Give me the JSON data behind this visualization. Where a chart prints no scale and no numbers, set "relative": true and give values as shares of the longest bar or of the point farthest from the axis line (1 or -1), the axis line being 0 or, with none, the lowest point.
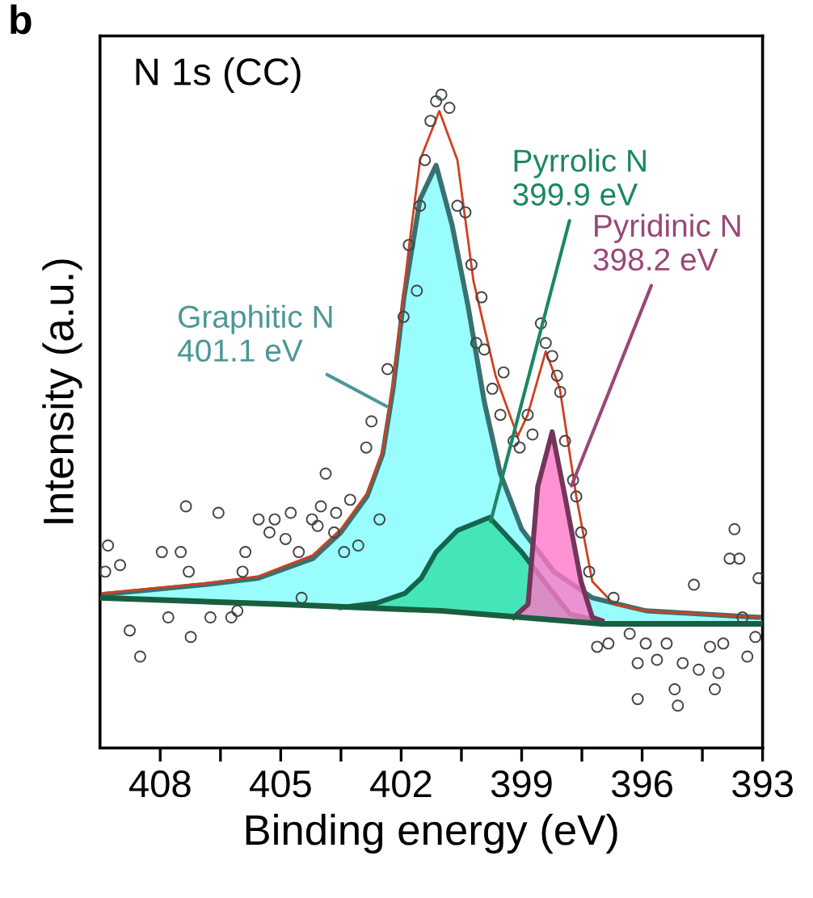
{
  "chart_data": {
    "type": "line",
    "relative": true,
    "title": "N 1s (CC)",
    "xlabel": "Binding energy (eV)",
    "ylabel": "Intensity (a.u.)",
    "xlim": [
      409.5,
      393
    ],
    "xticks": [
      408,
      {
        "value": 406.5,
        "label": null
      },
      405,
      {
        "value": 403.5,
        "label": null
      },
      402,
      {
        "value": 400.5,
        "label": null
      },
      399,
      {
        "value": 397.5,
        "label": null
      },
      396,
      {
        "value": 394.5,
        "label": null
      },
      393
    ],
    "grid": false,
    "annotations": [
      "b",
      {
        "text": "Graphitic N\n401.1 eV",
        "x": 402.27,
        "y": 0.52
      },
      {
        "text": "Pyrrolic N\n399.9 eV",
        "x": 399.8,
        "y": 0.34
      },
      {
        "text": "Pyridinic N\n398.2 eV",
        "x": 397.8,
        "y": 0.395
      }
    ],
    "series": [
      {
        "type": "area",
        "color": "#7ffcfc",
        "x": [
          409.45,
          406.9,
          405.55,
          404.2,
          403.5,
          402.85,
          402.46,
          402.2,
          401.93,
          401.53,
          401.13,
          400.73,
          400.33,
          399.93,
          399.53,
          399.0,
          398.2,
          397.24,
          395.9,
          393.1
        ],
        "values": [
          0.235,
          0.25,
          0.26,
          0.29,
          0.33,
          0.385,
          0.45,
          0.55,
          0.69,
          0.84,
          0.892,
          0.8,
          0.675,
          0.53,
          0.42,
          0.335,
          0.27,
          0.23,
          0.21,
          0.2
        ]
      },
      {
        "type": "area",
        "color": "#2ee0a8",
        "x": [
          403.5,
          402.6,
          401.9,
          401.5,
          401.13,
          400.6,
          399.8,
          399.0,
          398.44,
          397.8,
          397.3
        ],
        "values": [
          0.215,
          0.222,
          0.237,
          0.26,
          0.3,
          0.333,
          0.353,
          0.3,
          0.255,
          0.205,
          0.198
        ]
      },
      {
        "type": "area",
        "color": "#ff77c8",
        "x": [
          399.2,
          398.84,
          398.6,
          398.24,
          397.92,
          397.52,
          397.24,
          397.0
        ],
        "values": [
          0.2,
          0.22,
          0.4,
          0.484,
          0.385,
          0.255,
          0.2,
          0.195
        ]
      },
      {
        "color": "#1a5e40",
        "x": [
          409.5,
          405,
          401,
          397,
          393
        ],
        "values": [
          0.23,
          0.22,
          0.21,
          0.19,
          0.19
        ]
      },
      {
        "color": "#d04020",
        "x": [
          409.45,
          406.9,
          405.55,
          404.2,
          403.5,
          402.85,
          402.46,
          402.2,
          401.8,
          401.53,
          401.05,
          400.6,
          400.2,
          399.65,
          399.1,
          398.85,
          398.4,
          398.05,
          397.64,
          397.24,
          396.7,
          395.9,
          393.1
        ],
        "values": [
          0.237,
          0.252,
          0.263,
          0.295,
          0.335,
          0.39,
          0.455,
          0.56,
          0.77,
          0.9,
          0.975,
          0.9,
          0.715,
          0.57,
          0.477,
          0.51,
          0.607,
          0.55,
          0.385,
          0.255,
          0.22,
          0.21,
          0.2
        ]
      },
      {
        "type": "scatter",
        "color": "#444444",
        "marker": "circle",
        "x": [
          409.3,
          409.0,
          409.37,
          408.76,
          408.5,
          407.96,
          407.49,
          407.8,
          407.36,
          407.24,
          407.29,
          406.55,
          406.75,
          405.95,
          405.88,
          405.55,
          405.28,
          405.15,
          404.75,
          404.88,
          404.55,
          406.23,
          406.08,
          404.48,
          404.22,
          404.08,
          404.0,
          403.88,
          403.67,
          403.62,
          403.42,
          403.27,
          403.07,
          402.87,
          402.74,
          402.54,
          402.34,
          401.94,
          401.81,
          401.61,
          401.53,
          401.41,
          401.27,
          401.13,
          401.0,
          400.8,
          400.6,
          400.4,
          400.25,
          400.0,
          400.13,
          399.93,
          399.45,
          399.73,
          399.53,
          399.2,
          399.05,
          398.85,
          398.73,
          398.52,
          398.4,
          398.24,
          398.12,
          398.04,
          397.92,
          397.72,
          397.64,
          397.52,
          397.32,
          396.71,
          397.12,
          396.84,
          396.31,
          396.11,
          396.11,
          395.91,
          395.63,
          395.39,
          395.19,
          395.11,
          394.99,
          394.71,
          394.59,
          394.31,
          394.19,
          394.1,
          393.98,
          393.82,
          393.7,
          393.58,
          393.5,
          393.38,
          393.18,
          393.1
        ],
        "values": [
          0.31,
          0.28,
          0.27,
          0.18,
          0.14,
          0.3,
          0.3,
          0.2,
          0.37,
          0.17,
          0.27,
          0.36,
          0.2,
          0.27,
          0.3,
          0.35,
          0.33,
          0.35,
          0.36,
          0.32,
          0.3,
          0.2,
          0.21,
          0.23,
          0.35,
          0.34,
          0.37,
          0.42,
          0.33,
          0.36,
          0.3,
          0.38,
          0.31,
          0.46,
          0.5,
          0.35,
          0.58,
          0.66,
          0.77,
          0.7,
          0.83,
          0.9,
          0.96,
          0.99,
          1.0,
          0.98,
          0.83,
          0.82,
          0.74,
          0.69,
          0.62,
          0.61,
          0.575,
          0.55,
          0.51,
          0.47,
          0.46,
          0.51,
          0.48,
          0.65,
          0.62,
          0.6,
          0.57,
          0.545,
          0.47,
          0.41,
          0.385,
          0.33,
          0.27,
          0.23,
          0.155,
          0.16,
          0.175,
          0.13,
          0.075,
          0.16,
          0.135,
          0.16,
          0.09,
          0.065,
          0.13,
          0.25,
          0.12,
          0.155,
          0.09,
          0.115,
          0.16,
          0.29,
          0.335,
          0.29,
          0.2,
          0.14,
          0.17,
          0.26
        ]
      }
    ]
  }
}
